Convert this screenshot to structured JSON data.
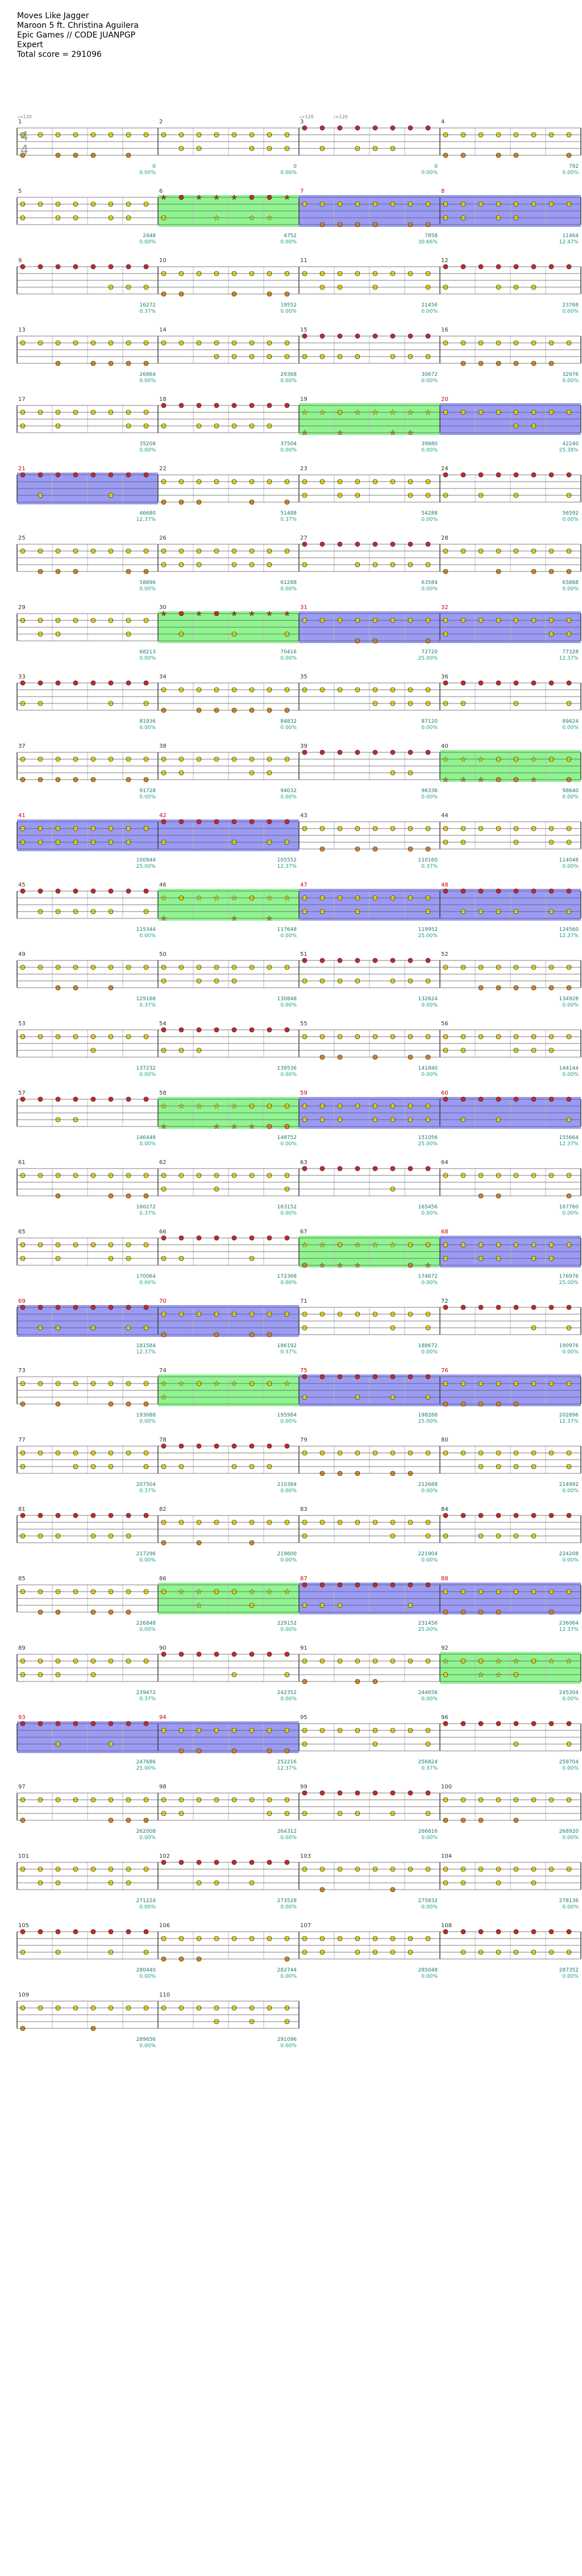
{
  "song": {
    "title": "Moves Like Jagger",
    "artist": "Maroon 5 ft. Christina Aguilera",
    "source": "Epic Games // CODE JUANPGP",
    "difficulty": "Expert",
    "total_score_label": "Total score = 291096"
  },
  "tempo_markers": [
    "♩=120",
    "♩=120",
    "♩=120"
  ],
  "time_signature": {
    "top": "4",
    "bottom": "4"
  },
  "lane_colors": {
    "red": "#e11d1d",
    "yellow": "#f2e600",
    "blue": "#1c28d8",
    "orange": "#ee8a16",
    "green_sp": "#7cf27c",
    "blue_sp": "#8a8af2"
  },
  "measures": [
    {
      "num": "1",
      "score": "0",
      "pct": "0.00%"
    },
    {
      "num": "2",
      "score": "0",
      "pct": "0.00%"
    },
    {
      "num": "3",
      "score": "0",
      "pct": "0.00%"
    },
    {
      "num": "4",
      "score": "792",
      "pct": "0.00%"
    },
    {
      "num": "5",
      "score": "2448",
      "pct": "0.00%"
    },
    {
      "num": "6",
      "score": "4752",
      "pct": "0.00%"
    },
    {
      "num": "7",
      "score": "7858",
      "pct": "30.66%"
    },
    {
      "num": "8",
      "score": "11464",
      "pct": "12.47%"
    },
    {
      "num": "9",
      "score": "16272",
      "pct": "0.37%"
    },
    {
      "num": "10",
      "score": "19552",
      "pct": "0.00%"
    },
    {
      "num": "11",
      "score": "21456",
      "pct": "0.00%"
    },
    {
      "num": "12",
      "score": "23768",
      "pct": "0.00%"
    },
    {
      "num": "13",
      "score": "26864",
      "pct": "0.00%"
    },
    {
      "num": "14",
      "score": "29368",
      "pct": "0.00%"
    },
    {
      "num": "15",
      "score": "30672",
      "pct": "0.00%"
    },
    {
      "num": "16",
      "score": "32976",
      "pct": "0.00%"
    },
    {
      "num": "17",
      "score": "35208",
      "pct": "0.00%"
    },
    {
      "num": "18",
      "score": "37504",
      "pct": "0.00%"
    },
    {
      "num": "19",
      "score": "39880",
      "pct": "0.00%"
    },
    {
      "num": "20",
      "score": "42240",
      "pct": "25.38%"
    },
    {
      "num": "21",
      "score": "46680",
      "pct": "12.37%"
    },
    {
      "num": "22",
      "score": "51488",
      "pct": "0.37%"
    },
    {
      "num": "23",
      "score": "54288",
      "pct": "0.00%"
    },
    {
      "num": "24",
      "score": "56592",
      "pct": "0.00%"
    },
    {
      "num": "25",
      "score": "58896",
      "pct": "0.00%"
    },
    {
      "num": "26",
      "score": "61288",
      "pct": "0.00%"
    },
    {
      "num": "27",
      "score": "63584",
      "pct": "0.00%"
    },
    {
      "num": "28",
      "score": "65888",
      "pct": "0.00%"
    },
    {
      "num": "29",
      "score": "68213",
      "pct": "0.00%"
    },
    {
      "num": "30",
      "score": "70416",
      "pct": "0.00%"
    },
    {
      "num": "31",
      "score": "72720",
      "pct": "25.00%"
    },
    {
      "num": "32",
      "score": "77328",
      "pct": "12.37%"
    },
    {
      "num": "33",
      "score": "81936",
      "pct": "0.00%"
    },
    {
      "num": "34",
      "score": "84832",
      "pct": "0.00%"
    },
    {
      "num": "35",
      "score": "87120",
      "pct": "0.00%"
    },
    {
      "num": "36",
      "score": "89424",
      "pct": "0.00%"
    },
    {
      "num": "37",
      "score": "91728",
      "pct": "0.00%"
    },
    {
      "num": "38",
      "score": "94032",
      "pct": "0.00%"
    },
    {
      "num": "39",
      "score": "96336",
      "pct": "0.00%"
    },
    {
      "num": "40",
      "score": "98640",
      "pct": "0.00%"
    },
    {
      "num": "41",
      "score": "100944",
      "pct": "25.00%"
    },
    {
      "num": "42",
      "score": "105552",
      "pct": "12.37%"
    },
    {
      "num": "43",
      "score": "110160",
      "pct": "0.37%"
    },
    {
      "num": "44",
      "score": "114048",
      "pct": "0.00%"
    },
    {
      "num": "45",
      "score": "115344",
      "pct": "0.00%"
    },
    {
      "num": "46",
      "score": "117648",
      "pct": "0.00%"
    },
    {
      "num": "47",
      "score": "119952",
      "pct": "25.00%"
    },
    {
      "num": "48",
      "score": "124560",
      "pct": "12.37%"
    },
    {
      "num": "49",
      "score": "129168",
      "pct": "0.37%"
    },
    {
      "num": "50",
      "score": "130848",
      "pct": "0.00%"
    },
    {
      "num": "51",
      "score": "132624",
      "pct": "0.00%"
    },
    {
      "num": "52",
      "score": "134928",
      "pct": "0.00%"
    },
    {
      "num": "53",
      "score": "137232",
      "pct": "0.00%"
    },
    {
      "num": "54",
      "score": "139536",
      "pct": "0.00%"
    },
    {
      "num": "55",
      "score": "141840",
      "pct": "0.00%"
    },
    {
      "num": "56",
      "score": "144144",
      "pct": "0.00%"
    },
    {
      "num": "57",
      "score": "146448",
      "pct": "0.00%"
    },
    {
      "num": "58",
      "score": "148752",
      "pct": "0.00%"
    },
    {
      "num": "59",
      "score": "151056",
      "pct": "25.00%"
    },
    {
      "num": "60",
      "score": "155664",
      "pct": "12.37%"
    },
    {
      "num": "61",
      "score": "160272",
      "pct": "0.37%"
    },
    {
      "num": "62",
      "score": "163152",
      "pct": "0.00%"
    },
    {
      "num": "63",
      "score": "165456",
      "pct": "0.00%"
    },
    {
      "num": "64",
      "score": "167760",
      "pct": "0.00%"
    },
    {
      "num": "65",
      "score": "170064",
      "pct": "0.00%"
    },
    {
      "num": "66",
      "score": "172368",
      "pct": "0.00%"
    },
    {
      "num": "67",
      "score": "174672",
      "pct": "0.00%"
    },
    {
      "num": "68",
      "score": "176976",
      "pct": "25.00%"
    },
    {
      "num": "69",
      "score": "181584",
      "pct": "12.37%"
    },
    {
      "num": "70",
      "score": "186192",
      "pct": "0.37%"
    },
    {
      "num": "71",
      "score": "188672",
      "pct": "0.00%"
    },
    {
      "num": "72",
      "score": "190976",
      "pct": "0.00%"
    },
    {
      "num": "73",
      "score": "193088",
      "pct": "0.00%"
    },
    {
      "num": "74",
      "score": "195984",
      "pct": "0.00%"
    },
    {
      "num": "75",
      "score": "198288",
      "pct": "25.00%"
    },
    {
      "num": "76",
      "score": "202896",
      "pct": "12.37%"
    },
    {
      "num": "77",
      "score": "207504",
      "pct": "0.37%"
    },
    {
      "num": "78",
      "score": "210384",
      "pct": "0.00%"
    },
    {
      "num": "79",
      "score": "212688",
      "pct": "0.00%"
    },
    {
      "num": "80",
      "score": "214992",
      "pct": "0.00%"
    },
    {
      "num": "81",
      "score": "217296",
      "pct": "0.00%"
    },
    {
      "num": "82",
      "score": "219600",
      "pct": "0.00%"
    },
    {
      "num": "83",
      "score": "221904",
      "pct": "0.00%"
    },
    {
      "num": "84",
      "score": "224208",
      "pct": "0.00%"
    },
    {
      "num": "85",
      "score": "226848",
      "pct": "0.00%"
    },
    {
      "num": "86",
      "score": "229152",
      "pct": "0.00%"
    },
    {
      "num": "87",
      "score": "231456",
      "pct": "25.00%"
    },
    {
      "num": "88",
      "score": "236064",
      "pct": "12.37%"
    },
    {
      "num": "89",
      "score": "239472",
      "pct": "0.37%"
    },
    {
      "num": "90",
      "score": "242352",
      "pct": "0.00%"
    },
    {
      "num": "91",
      "score": "244656",
      "pct": "0.00%"
    },
    {
      "num": "92",
      "score": "245304",
      "pct": "0.00%"
    },
    {
      "num": "93",
      "score": "247686",
      "pct": "25.00%"
    },
    {
      "num": "94",
      "score": "252216",
      "pct": "12.37%"
    },
    {
      "num": "95",
      "score": "256824",
      "pct": "0.37%"
    },
    {
      "num": "96",
      "score": "259704",
      "pct": "0.00%"
    },
    {
      "num": "97",
      "score": "262008",
      "pct": "0.00%"
    },
    {
      "num": "98",
      "score": "264312",
      "pct": "0.00%"
    },
    {
      "num": "99",
      "score": "266616",
      "pct": "0.00%"
    },
    {
      "num": "100",
      "score": "268920",
      "pct": "0.00%"
    },
    {
      "num": "101",
      "score": "271224",
      "pct": "0.00%"
    },
    {
      "num": "102",
      "score": "273528",
      "pct": "0.00%"
    },
    {
      "num": "103",
      "score": "275832",
      "pct": "0.00%"
    },
    {
      "num": "104",
      "score": "278136",
      "pct": "0.00%"
    },
    {
      "num": "105",
      "score": "280440",
      "pct": "0.00%"
    },
    {
      "num": "106",
      "score": "282744",
      "pct": "0.00%"
    },
    {
      "num": "107",
      "score": "285048",
      "pct": "0.00%"
    },
    {
      "num": "108",
      "score": "287352",
      "pct": "0.00%"
    },
    {
      "num": "109",
      "score": "289656",
      "pct": "0.00%"
    },
    {
      "num": "110",
      "score": "291096",
      "pct": "0.00%"
    }
  ],
  "star_power": [
    {
      "measure": "6",
      "type": "green"
    },
    {
      "measure": "7",
      "type": "blue"
    },
    {
      "measure": "8",
      "type": "blue"
    },
    {
      "measure": "19",
      "type": "green"
    },
    {
      "measure": "20",
      "type": "blue"
    },
    {
      "measure": "21",
      "type": "blue"
    },
    {
      "measure": "30",
      "type": "green"
    },
    {
      "measure": "31",
      "type": "blue"
    },
    {
      "measure": "32",
      "type": "blue"
    },
    {
      "measure": "40",
      "type": "green"
    },
    {
      "measure": "41",
      "type": "blue"
    },
    {
      "measure": "42",
      "type": "blue"
    },
    {
      "measure": "46",
      "type": "green"
    },
    {
      "measure": "47",
      "type": "blue"
    },
    {
      "measure": "48",
      "type": "blue"
    },
    {
      "measure": "58",
      "type": "green"
    },
    {
      "measure": "59",
      "type": "blue"
    },
    {
      "measure": "60",
      "type": "blue"
    },
    {
      "measure": "67",
      "type": "green"
    },
    {
      "measure": "68",
      "type": "blue"
    },
    {
      "measure": "69",
      "type": "blue"
    },
    {
      "measure": "70",
      "type": "blue"
    },
    {
      "measure": "74",
      "type": "green"
    },
    {
      "measure": "75",
      "type": "blue"
    },
    {
      "measure": "76",
      "type": "blue"
    },
    {
      "measure": "86",
      "type": "green"
    },
    {
      "measure": "87",
      "type": "blue"
    },
    {
      "measure": "88",
      "type": "blue"
    },
    {
      "measure": "92",
      "type": "green"
    },
    {
      "measure": "93",
      "type": "blue"
    },
    {
      "measure": "94",
      "type": "blue"
    }
  ]
}
